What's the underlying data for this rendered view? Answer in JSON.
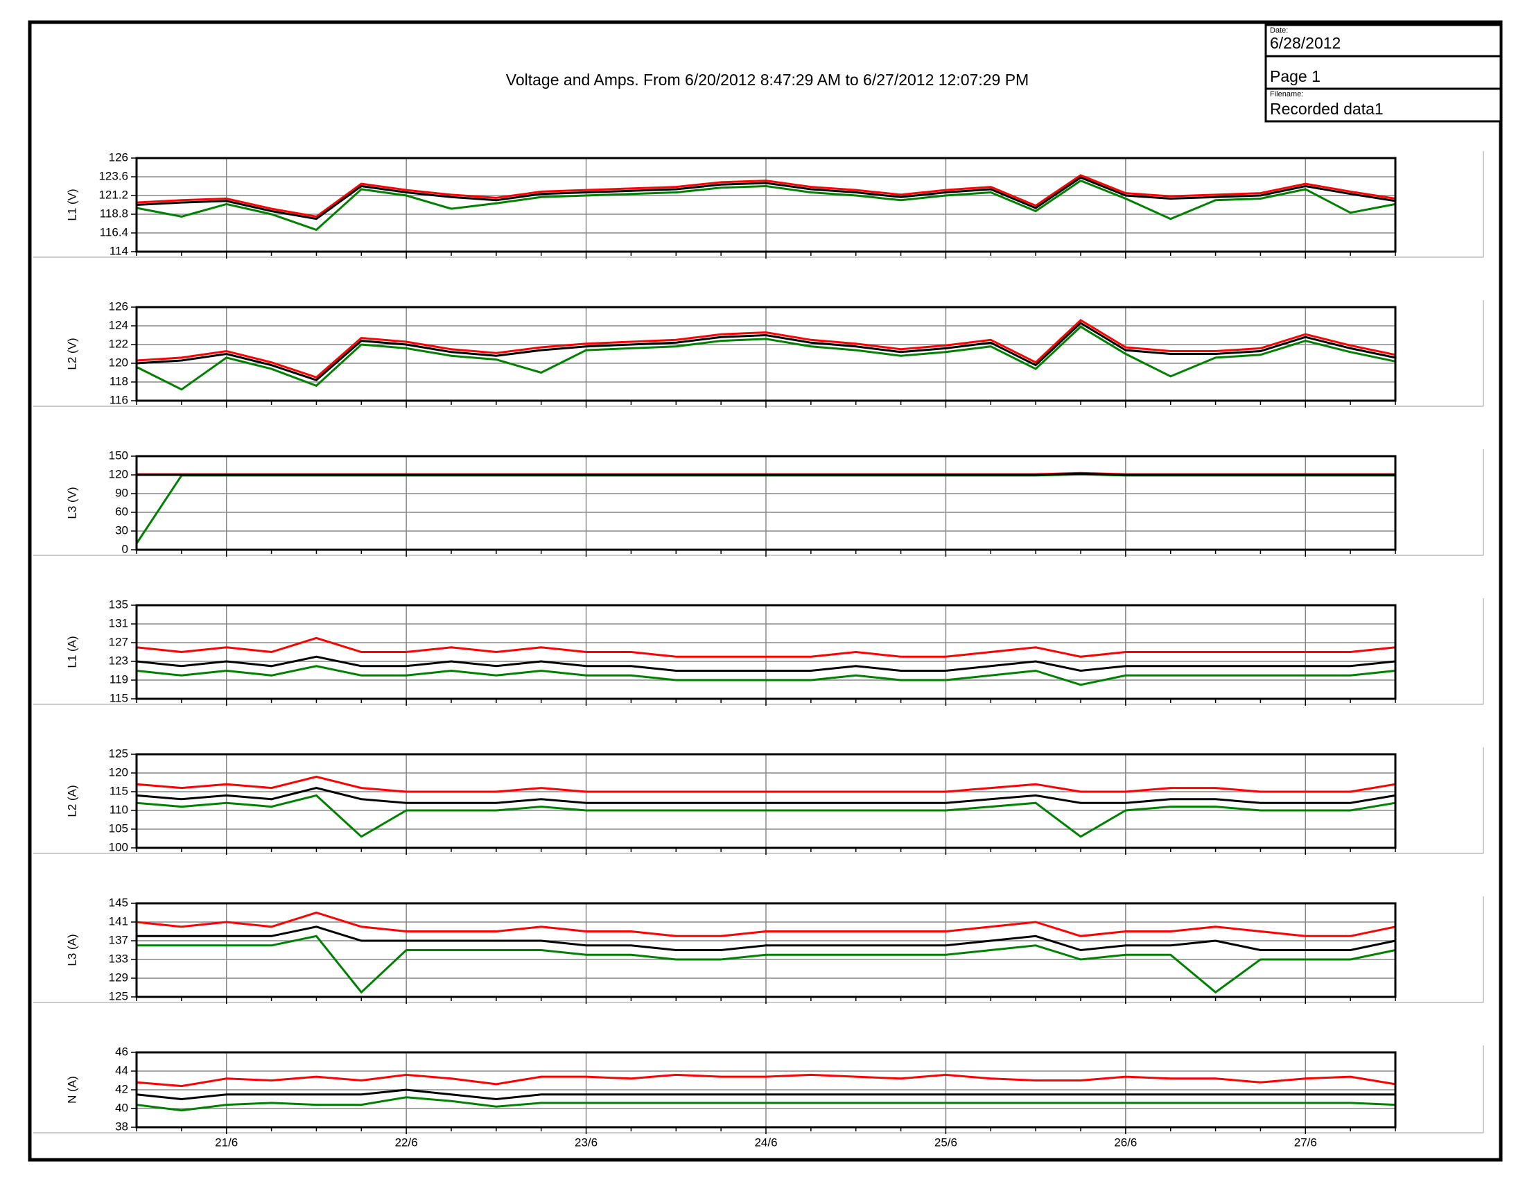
{
  "header": {
    "title": "Voltage and Amps. From 6/20/2012 8:47:29 AM to 6/27/2012 12:07:29 PM",
    "date_label": "Date:",
    "date": "6/28/2012",
    "page": "Page 1",
    "filename_label": "Filename:",
    "filename": "Recorded data1"
  },
  "chart_data": [
    {
      "type": "line",
      "ylabel": "L1 (V)",
      "ylim": [
        114,
        126
      ],
      "yticks": [
        114,
        116.4,
        118.8,
        121.2,
        123.6,
        126
      ],
      "grid": true,
      "series": [
        {
          "color": "#ff0000",
          "values": [
            120.3,
            120.6,
            120.8,
            119.5,
            118.5,
            122.7,
            121.9,
            121.3,
            120.9,
            121.7,
            121.9,
            122.1,
            122.3,
            122.9,
            123.1,
            122.3,
            121.9,
            121.3,
            121.9,
            122.3,
            119.9,
            123.8,
            121.5,
            121.1,
            121.3,
            121.5,
            122.7,
            121.7,
            120.8
          ]
        },
        {
          "color": "#008000",
          "values": [
            119.6,
            118.5,
            120.1,
            118.8,
            116.8,
            122.0,
            121.2,
            119.5,
            120.2,
            121.0,
            121.2,
            121.4,
            121.6,
            122.2,
            122.4,
            121.6,
            121.2,
            120.6,
            121.2,
            121.6,
            119.2,
            123.1,
            120.8,
            118.2,
            120.6,
            120.8,
            122.0,
            119.0,
            120.1
          ]
        },
        {
          "color": "#000000",
          "values": [
            120.0,
            120.3,
            120.5,
            119.2,
            118.2,
            122.4,
            121.6,
            121.0,
            120.6,
            121.4,
            121.6,
            121.8,
            122.0,
            122.6,
            122.8,
            122.0,
            121.6,
            121.0,
            121.6,
            122.0,
            119.6,
            123.5,
            121.2,
            120.8,
            121.0,
            121.2,
            122.4,
            121.4,
            120.5
          ]
        }
      ]
    },
    {
      "type": "line",
      "ylabel": "L2 (V)",
      "ylim": [
        116,
        126
      ],
      "yticks": [
        116,
        118,
        120,
        122,
        124,
        126
      ],
      "grid": true,
      "series": [
        {
          "color": "#ff0000",
          "values": [
            120.3,
            120.6,
            121.3,
            120.1,
            118.5,
            122.7,
            122.3,
            121.5,
            121.1,
            121.7,
            122.1,
            122.3,
            122.5,
            123.1,
            123.3,
            122.5,
            122.1,
            121.5,
            121.9,
            122.5,
            120.1,
            124.6,
            121.7,
            121.3,
            121.3,
            121.6,
            123.1,
            121.9,
            120.9
          ]
        },
        {
          "color": "#008000",
          "values": [
            119.6,
            117.2,
            120.6,
            119.4,
            117.6,
            122.0,
            121.6,
            120.8,
            120.4,
            119.0,
            121.4,
            121.6,
            121.8,
            122.4,
            122.6,
            121.8,
            121.4,
            120.8,
            121.2,
            121.8,
            119.4,
            123.9,
            121.0,
            118.6,
            120.6,
            120.9,
            122.4,
            121.2,
            120.2
          ]
        },
        {
          "color": "#000000",
          "values": [
            120.0,
            120.3,
            121.0,
            119.8,
            118.2,
            122.4,
            122.0,
            121.2,
            120.8,
            121.4,
            121.8,
            122.0,
            122.2,
            122.8,
            123.0,
            122.2,
            121.8,
            121.2,
            121.6,
            122.2,
            119.8,
            124.3,
            121.4,
            121.0,
            121.0,
            121.3,
            122.8,
            121.6,
            120.6
          ]
        }
      ]
    },
    {
      "type": "line",
      "ylabel": "L3 (V)",
      "ylim": [
        0,
        150
      ],
      "yticks": [
        0,
        30,
        60,
        90,
        120,
        150
      ],
      "grid": true,
      "series": [
        {
          "color": "#ff0000",
          "values": [
            121,
            121,
            121,
            121,
            121,
            121,
            121,
            121,
            121,
            121,
            121,
            121,
            121,
            121,
            121,
            121,
            121,
            121,
            121,
            121,
            121,
            123,
            121,
            121,
            121,
            121,
            121,
            121,
            121
          ]
        },
        {
          "color": "#008000",
          "values": [
            10,
            119,
            119,
            119,
            119,
            119,
            119,
            119,
            119,
            119,
            119,
            119,
            119,
            119,
            119,
            119,
            119,
            119,
            119,
            119,
            119,
            121,
            119,
            119,
            119,
            119,
            119,
            119,
            119
          ]
        },
        {
          "color": "#000000",
          "values": [
            120,
            120,
            120,
            120,
            120,
            120,
            120,
            120,
            120,
            120,
            120,
            120,
            120,
            120,
            120,
            120,
            120,
            120,
            120,
            120,
            120,
            122,
            120,
            120,
            120,
            120,
            120,
            120,
            120
          ]
        }
      ]
    },
    {
      "type": "line",
      "ylabel": "L1 (A)",
      "ylim": [
        115,
        135
      ],
      "yticks": [
        115,
        119,
        123,
        127,
        131,
        135
      ],
      "grid": true,
      "series": [
        {
          "color": "#ff0000",
          "values": [
            126,
            125,
            126,
            125,
            128,
            125,
            125,
            126,
            125,
            126,
            125,
            125,
            124,
            124,
            124,
            124,
            125,
            124,
            124,
            125,
            126,
            124,
            125,
            125,
            125,
            125,
            125,
            125,
            126
          ]
        },
        {
          "color": "#008000",
          "values": [
            121,
            120,
            121,
            120,
            122,
            120,
            120,
            121,
            120,
            121,
            120,
            120,
            119,
            119,
            119,
            119,
            120,
            119,
            119,
            120,
            121,
            118,
            120,
            120,
            120,
            120,
            120,
            120,
            121
          ]
        },
        {
          "color": "#000000",
          "values": [
            123,
            122,
            123,
            122,
            124,
            122,
            122,
            123,
            122,
            123,
            122,
            122,
            121,
            121,
            121,
            121,
            122,
            121,
            121,
            122,
            123,
            121,
            122,
            122,
            122,
            122,
            122,
            122,
            123
          ]
        }
      ]
    },
    {
      "type": "line",
      "ylabel": "L2 (A)",
      "ylim": [
        100,
        125
      ],
      "yticks": [
        100,
        105,
        110,
        115,
        120,
        125
      ],
      "grid": true,
      "series": [
        {
          "color": "#ff0000",
          "values": [
            117,
            116,
            117,
            116,
            119,
            116,
            115,
            115,
            115,
            116,
            115,
            115,
            115,
            115,
            115,
            115,
            115,
            115,
            115,
            116,
            117,
            115,
            115,
            116,
            116,
            115,
            115,
            115,
            117
          ]
        },
        {
          "color": "#008000",
          "values": [
            112,
            111,
            112,
            111,
            114,
            103,
            110,
            110,
            110,
            111,
            110,
            110,
            110,
            110,
            110,
            110,
            110,
            110,
            110,
            111,
            112,
            103,
            110,
            111,
            111,
            110,
            110,
            110,
            112
          ]
        },
        {
          "color": "#000000",
          "values": [
            114,
            113,
            114,
            113,
            116,
            113,
            112,
            112,
            112,
            113,
            112,
            112,
            112,
            112,
            112,
            112,
            112,
            112,
            112,
            113,
            114,
            112,
            112,
            113,
            113,
            112,
            112,
            112,
            114
          ]
        }
      ]
    },
    {
      "type": "line",
      "ylabel": "L3 (A)",
      "ylim": [
        125,
        145
      ],
      "yticks": [
        125,
        129,
        133,
        137,
        141,
        145
      ],
      "grid": true,
      "series": [
        {
          "color": "#ff0000",
          "values": [
            141,
            140,
            141,
            140,
            143,
            140,
            139,
            139,
            139,
            140,
            139,
            139,
            138,
            138,
            139,
            139,
            139,
            139,
            139,
            140,
            141,
            138,
            139,
            139,
            140,
            139,
            138,
            138,
            140
          ]
        },
        {
          "color": "#008000",
          "values": [
            136,
            136,
            136,
            136,
            138,
            126,
            135,
            135,
            135,
            135,
            134,
            134,
            133,
            133,
            134,
            134,
            134,
            134,
            134,
            135,
            136,
            133,
            134,
            134,
            126,
            133,
            133,
            133,
            135
          ]
        },
        {
          "color": "#000000",
          "values": [
            138,
            138,
            138,
            138,
            140,
            137,
            137,
            137,
            137,
            137,
            136,
            136,
            135,
            135,
            136,
            136,
            136,
            136,
            136,
            137,
            138,
            135,
            136,
            136,
            137,
            135,
            135,
            135,
            137
          ]
        }
      ]
    },
    {
      "type": "line",
      "ylabel": "N (A)",
      "ylim": [
        38,
        46
      ],
      "yticks": [
        38,
        40,
        42,
        44,
        46
      ],
      "grid": true,
      "categories": [
        null,
        null,
        "21/6",
        null,
        null,
        null,
        "22/6",
        null,
        null,
        null,
        "23/6",
        null,
        null,
        null,
        "24/6",
        null,
        null,
        null,
        "25/6",
        null,
        null,
        null,
        "26/6",
        null,
        null,
        null,
        "27/6",
        null,
        null
      ],
      "series": [
        {
          "color": "#ff0000",
          "values": [
            42.8,
            42.4,
            43.2,
            43.0,
            43.4,
            43.0,
            43.6,
            43.2,
            42.6,
            43.4,
            43.4,
            43.2,
            43.6,
            43.4,
            43.4,
            43.6,
            43.4,
            43.2,
            43.6,
            43.2,
            43.0,
            43.0,
            43.4,
            43.2,
            43.2,
            42.8,
            43.2,
            43.4,
            42.6
          ]
        },
        {
          "color": "#008000",
          "values": [
            40.4,
            39.8,
            40.4,
            40.6,
            40.4,
            40.4,
            41.2,
            40.8,
            40.2,
            40.6,
            40.6,
            40.6,
            40.6,
            40.6,
            40.6,
            40.6,
            40.6,
            40.6,
            40.6,
            40.6,
            40.6,
            40.6,
            40.6,
            40.6,
            40.6,
            40.6,
            40.6,
            40.6,
            40.4
          ]
        },
        {
          "color": "#000000",
          "values": [
            41.5,
            41.0,
            41.5,
            41.5,
            41.5,
            41.5,
            42.0,
            41.5,
            41.0,
            41.5,
            41.5,
            41.5,
            41.5,
            41.5,
            41.5,
            41.5,
            41.5,
            41.5,
            41.5,
            41.5,
            41.5,
            41.5,
            41.5,
            41.5,
            41.5,
            41.5,
            41.5,
            41.5,
            41.5
          ]
        }
      ]
    }
  ]
}
